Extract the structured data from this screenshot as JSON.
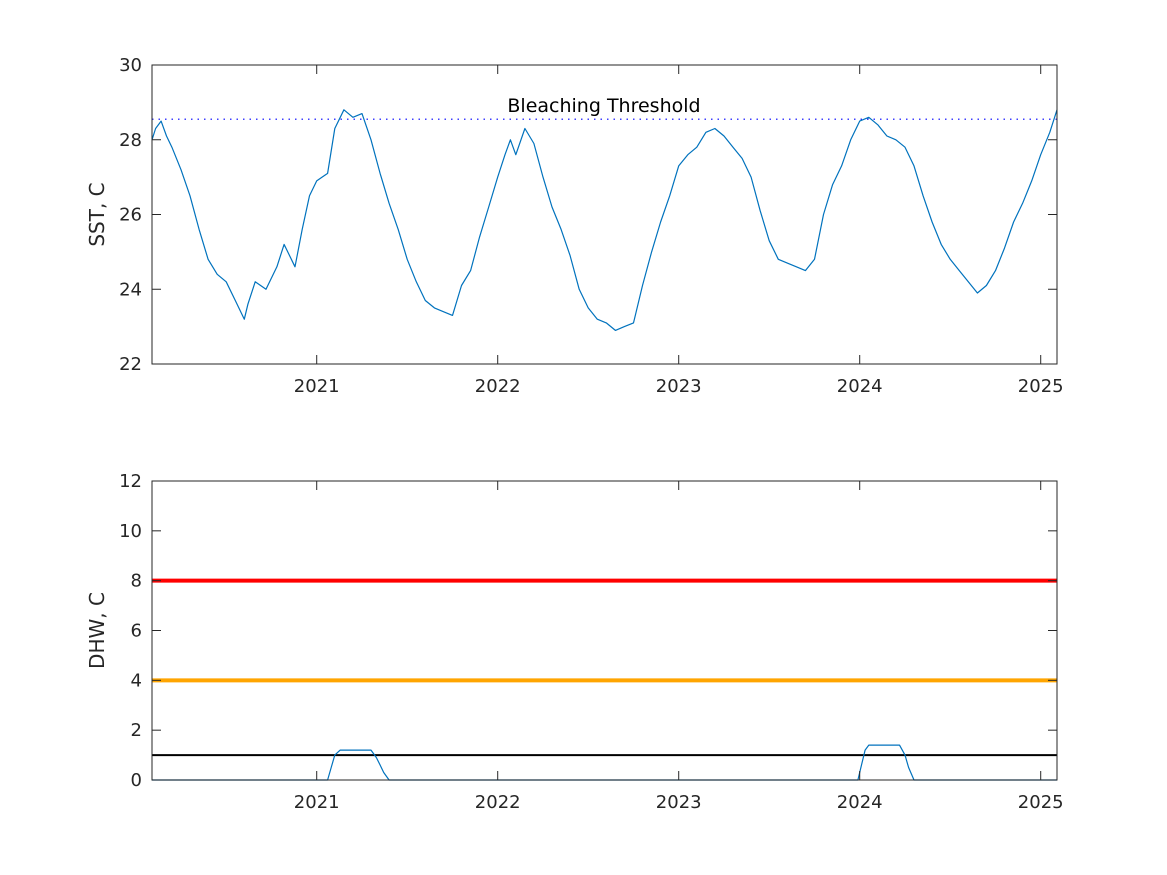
{
  "chart_data": [
    {
      "type": "line",
      "ylabel": "SST, C",
      "xlim": [
        2020.09,
        2025.09
      ],
      "ylim": [
        22,
        30
      ],
      "yticks": [
        22,
        24,
        26,
        28,
        30
      ],
      "xticks": [
        2021,
        2022,
        2023,
        2024,
        2025
      ],
      "grid": false,
      "threshold": {
        "label": "Bleaching Threshold",
        "value": 28.55,
        "style": "dotted",
        "color": "#0000ff"
      },
      "series": [
        {
          "color": "#0072bd",
          "x": [
            2020.09,
            2020.11,
            2020.14,
            2020.17,
            2020.2,
            2020.25,
            2020.3,
            2020.35,
            2020.4,
            2020.45,
            2020.5,
            2020.55,
            2020.6,
            2020.62,
            2020.66,
            2020.72,
            2020.78,
            2020.82,
            2020.88,
            2020.92,
            2020.96,
            2021.0,
            2021.03,
            2021.06,
            2021.1,
            2021.15,
            2021.2,
            2021.25,
            2021.3,
            2021.35,
            2021.4,
            2021.45,
            2021.5,
            2021.55,
            2021.6,
            2021.65,
            2021.7,
            2021.75,
            2021.8,
            2021.85,
            2021.9,
            2021.95,
            2022.0,
            2022.04,
            2022.07,
            2022.1,
            2022.15,
            2022.2,
            2022.25,
            2022.3,
            2022.35,
            2022.4,
            2022.45,
            2022.5,
            2022.55,
            2022.6,
            2022.65,
            2022.7,
            2022.75,
            2022.8,
            2022.85,
            2022.9,
            2022.95,
            2023.0,
            2023.05,
            2023.1,
            2023.15,
            2023.2,
            2023.25,
            2023.3,
            2023.35,
            2023.4,
            2023.45,
            2023.5,
            2023.55,
            2023.6,
            2023.65,
            2023.7,
            2023.75,
            2023.8,
            2023.85,
            2023.9,
            2023.95,
            2024.0,
            2024.05,
            2024.1,
            2024.15,
            2024.2,
            2024.25,
            2024.3,
            2024.35,
            2024.4,
            2024.45,
            2024.5,
            2024.55,
            2024.6,
            2024.65,
            2024.7,
            2024.75,
            2024.8,
            2024.85,
            2024.9,
            2024.95,
            2025.0,
            2025.05,
            2025.09
          ],
          "y": [
            28.0,
            28.3,
            28.5,
            28.1,
            27.8,
            27.2,
            26.5,
            25.6,
            24.8,
            24.4,
            24.2,
            23.7,
            23.2,
            23.6,
            24.2,
            24.0,
            24.6,
            25.2,
            24.6,
            25.6,
            26.5,
            26.9,
            27.0,
            27.1,
            28.3,
            28.8,
            28.6,
            28.7,
            28.0,
            27.1,
            26.3,
            25.6,
            24.8,
            24.2,
            23.7,
            23.5,
            23.4,
            23.3,
            24.1,
            24.5,
            25.4,
            26.2,
            27.0,
            27.6,
            28.0,
            27.6,
            28.3,
            27.9,
            27.0,
            26.2,
            25.6,
            24.9,
            24.0,
            23.5,
            23.2,
            23.1,
            22.9,
            23.0,
            23.1,
            24.1,
            25.0,
            25.8,
            26.5,
            27.3,
            27.6,
            27.8,
            28.2,
            28.3,
            28.1,
            27.8,
            27.5,
            27.0,
            26.1,
            25.3,
            24.8,
            24.7,
            24.6,
            24.5,
            24.8,
            26.0,
            26.8,
            27.3,
            28.0,
            28.5,
            28.6,
            28.4,
            28.1,
            28.0,
            27.8,
            27.3,
            26.5,
            25.8,
            25.2,
            24.8,
            24.5,
            24.2,
            23.9,
            24.1,
            24.5,
            25.1,
            25.8,
            26.3,
            26.9,
            27.6,
            28.2,
            28.8
          ]
        }
      ]
    },
    {
      "type": "line",
      "ylabel": "DHW, C",
      "xlim": [
        2020.09,
        2025.09
      ],
      "ylim": [
        0,
        12
      ],
      "yticks": [
        0,
        2,
        4,
        6,
        8,
        10,
        12
      ],
      "xticks": [
        2021,
        2022,
        2023,
        2024,
        2025
      ],
      "grid": false,
      "reference_lines": [
        {
          "value": 8,
          "color": "#ff0000"
        },
        {
          "value": 4,
          "color": "#ffa500"
        },
        {
          "value": 1,
          "color": "#000000"
        }
      ],
      "series": [
        {
          "color": "#0072bd",
          "x": [
            2020.09,
            2021.06,
            2021.08,
            2021.1,
            2021.13,
            2021.15,
            2021.3,
            2021.33,
            2021.35,
            2021.37,
            2021.4,
            2023.99,
            2024.01,
            2024.03,
            2024.05,
            2024.22,
            2024.25,
            2024.27,
            2024.3,
            2025.09
          ],
          "y": [
            0,
            0,
            0.5,
            1.0,
            1.2,
            1.2,
            1.2,
            0.9,
            0.6,
            0.3,
            0,
            0,
            0.6,
            1.2,
            1.4,
            1.4,
            1.0,
            0.5,
            0,
            0
          ]
        }
      ]
    }
  ]
}
